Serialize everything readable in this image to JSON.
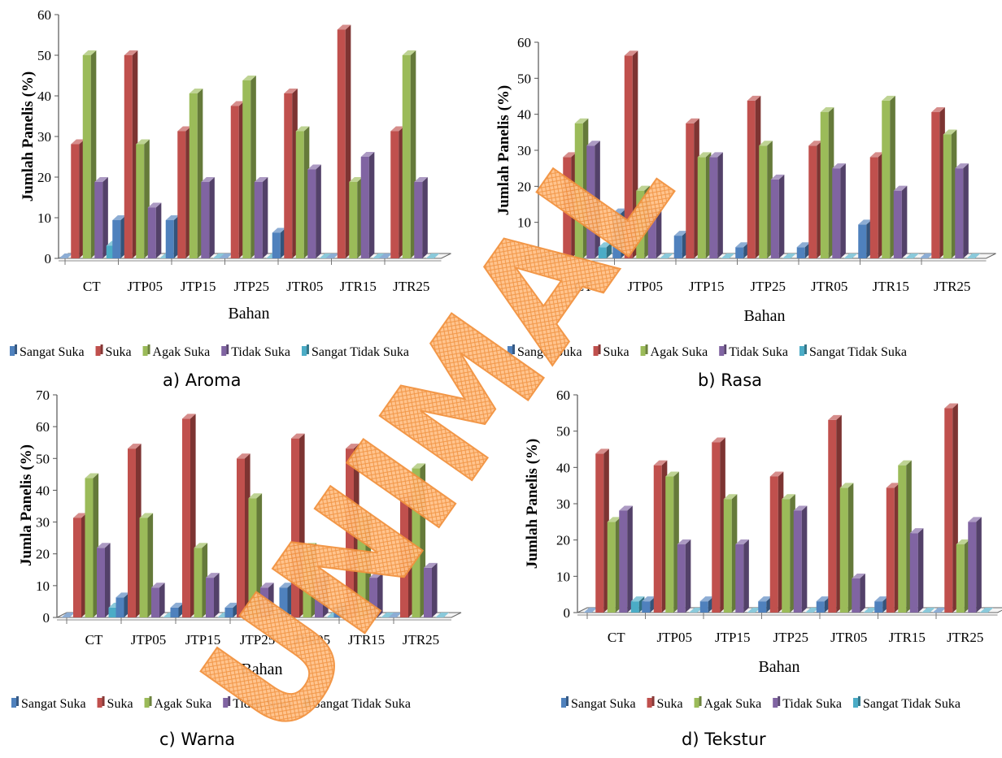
{
  "figure": {
    "colors": {
      "Sangat Suka": "#4F81BD",
      "Suka": "#C0504D",
      "Agak Suka": "#9BBB59",
      "Tidak Suka": "#8064A2",
      "Sangat Tidak Suka": "#4BACC6"
    },
    "watermark": "UNIMAL"
  },
  "chart_data": [
    {
      "type": "bar",
      "caption": "a)  Aroma",
      "xlabel": "Bahan",
      "ylabel": "Jumlah Panelis (%)",
      "ylim": [
        0,
        60
      ],
      "yticks": [
        0,
        10,
        20,
        30,
        40,
        50,
        60
      ],
      "legend_position": "bottom",
      "categories": [
        "CT",
        "JTP05",
        "JTP15",
        "JTP25",
        "JTR05",
        "JTR15",
        "JTR25"
      ],
      "series": [
        {
          "name": "Sangat Suka",
          "values": [
            0,
            9.4,
            9.4,
            0,
            6.3,
            0,
            0
          ]
        },
        {
          "name": "Suka",
          "values": [
            28.1,
            50,
            31.3,
            37.5,
            40.6,
            56.3,
            31.3
          ]
        },
        {
          "name": "Agak Suka",
          "values": [
            50,
            28.1,
            40.6,
            43.8,
            31.3,
            18.8,
            50
          ]
        },
        {
          "name": "Tidak Suka",
          "values": [
            18.8,
            12.5,
            18.8,
            18.8,
            21.9,
            25,
            18.8
          ]
        },
        {
          "name": "Sangat Tidak Suka",
          "values": [
            3.1,
            0,
            0,
            0,
            0,
            0,
            0
          ]
        }
      ]
    },
    {
      "type": "bar",
      "caption": "b)  Rasa",
      "xlabel": "Bahan",
      "ylabel": "Jumlah Panelis (%)",
      "ylim": [
        0,
        60
      ],
      "yticks": [
        0,
        10,
        20,
        30,
        40,
        50,
        60
      ],
      "legend_position": "bottom",
      "categories": [
        "CT",
        "JTP05",
        "JTP15",
        "JTP25",
        "JTR05",
        "JTR15",
        "JTR25"
      ],
      "series": [
        {
          "name": "Sangat Suka",
          "values": [
            0,
            12.5,
            6.3,
            3.1,
            3.1,
            9.4,
            0
          ]
        },
        {
          "name": "Suka",
          "values": [
            28.1,
            56.3,
            37.5,
            43.8,
            31.3,
            28.1,
            40.6
          ]
        },
        {
          "name": "Agak Suka",
          "values": [
            37.5,
            18.8,
            28.1,
            31.3,
            40.6,
            43.8,
            34.4
          ]
        },
        {
          "name": "Tidak Suka",
          "values": [
            31.3,
            12.5,
            28.1,
            21.9,
            25,
            18.8,
            25
          ]
        },
        {
          "name": "Sangat Tidak Suka",
          "values": [
            3.1,
            0,
            0,
            0,
            0,
            0,
            0
          ]
        }
      ]
    },
    {
      "type": "bar",
      "caption": "c)  Warna",
      "xlabel": "Bahan",
      "ylabel": "Jumla Panelis (%)",
      "ylim": [
        0,
        70
      ],
      "yticks": [
        0,
        10,
        20,
        30,
        40,
        50,
        60,
        70
      ],
      "legend_position": "bottom",
      "categories": [
        "CT",
        "JTP05",
        "JTP15",
        "JTP25",
        "JTR05",
        "JTR15",
        "JTR25"
      ],
      "series": [
        {
          "name": "Sangat Suka",
          "values": [
            0,
            6.3,
            3.1,
            3.1,
            9.4,
            3.1,
            0
          ]
        },
        {
          "name": "Suka",
          "values": [
            31.3,
            53.1,
            62.5,
            50,
            56.3,
            53.1,
            37.5
          ]
        },
        {
          "name": "Agak Suka",
          "values": [
            43.8,
            31.3,
            21.9,
            37.5,
            21.9,
            31.3,
            46.9
          ]
        },
        {
          "name": "Tidak Suka",
          "values": [
            21.9,
            9.4,
            12.5,
            9.4,
            12.5,
            12.5,
            15.6
          ]
        },
        {
          "name": "Sangat Tidak Suka",
          "values": [
            3.1,
            0,
            0,
            0,
            0,
            0,
            0
          ]
        }
      ]
    },
    {
      "type": "bar",
      "caption": "d)  Tekstur",
      "xlabel": "Bahan",
      "ylabel": "Jumlah Panelis (%)",
      "ylim": [
        0,
        60
      ],
      "yticks": [
        0,
        10,
        20,
        30,
        40,
        50,
        60
      ],
      "legend_position": "bottom",
      "categories": [
        "CT",
        "JTP05",
        "JTP15",
        "JTP25",
        "JTR05",
        "JTR15",
        "JTR25"
      ],
      "series": [
        {
          "name": "Sangat Suka",
          "values": [
            0,
            3.1,
            3.1,
            3.1,
            3.1,
            3.1,
            0
          ]
        },
        {
          "name": "Suka",
          "values": [
            43.8,
            40.6,
            46.9,
            37.5,
            53.1,
            34.4,
            56.3
          ]
        },
        {
          "name": "Agak Suka",
          "values": [
            25,
            37.5,
            31.3,
            31.3,
            34.4,
            40.6,
            18.8
          ]
        },
        {
          "name": "Tidak Suka",
          "values": [
            28.1,
            18.8,
            18.8,
            28.1,
            9.4,
            21.9,
            25
          ]
        },
        {
          "name": "Sangat Tidak Suka",
          "values": [
            3.1,
            0,
            0,
            0,
            0,
            0,
            0
          ]
        }
      ]
    }
  ]
}
